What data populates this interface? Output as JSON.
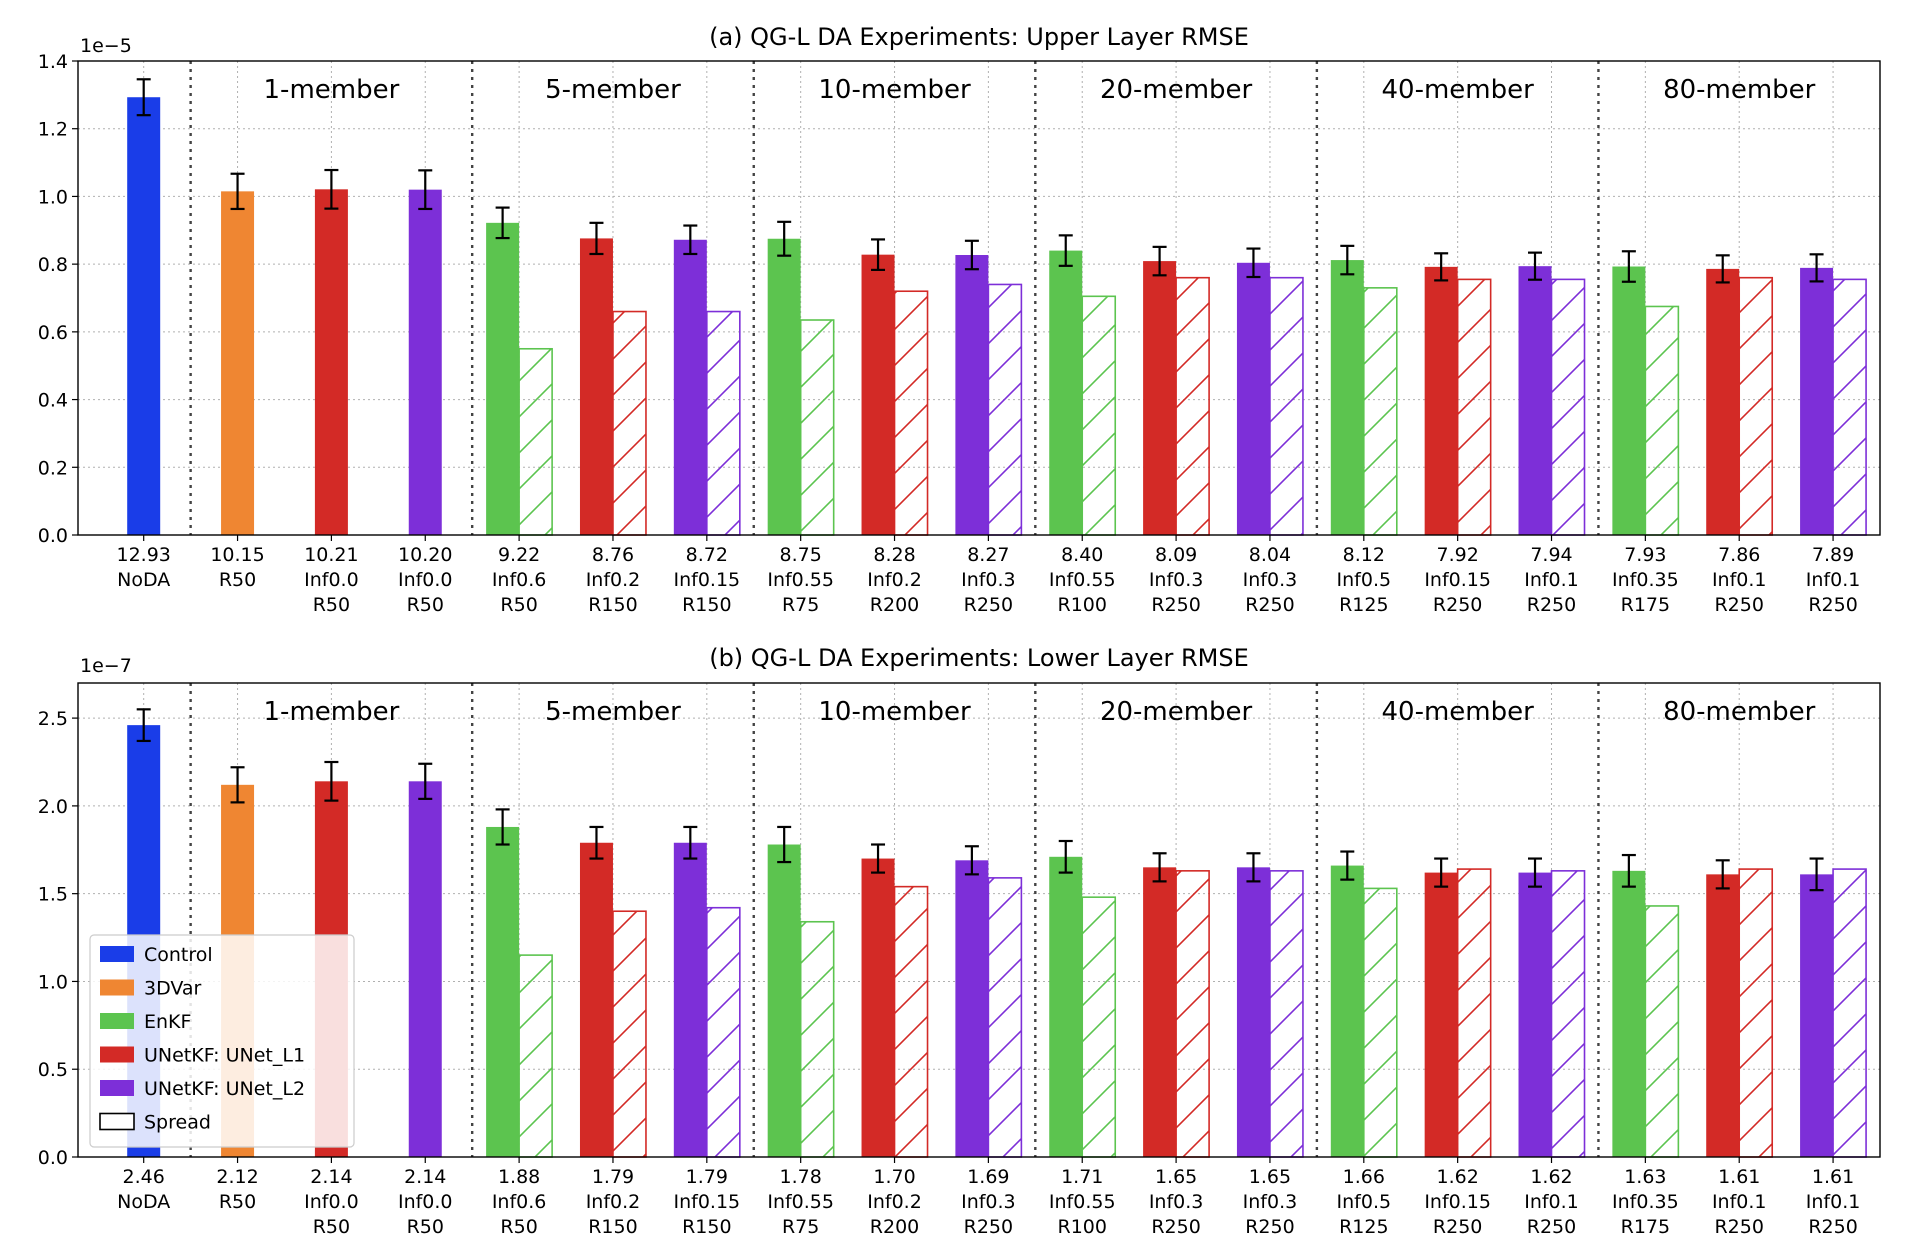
{
  "colors": {
    "Control": "#1a3de8",
    "3DVar": "#ef8632",
    "EnKF": "#5cc44f",
    "UNetKF: UNet_L1": "#d32a26",
    "UNetKF: UNet_L2": "#7d2fd8"
  },
  "legend": {
    "placement": "lower-left",
    "entries": [
      "Control",
      "3DVar",
      "EnKF",
      "UNetKF: UNet_L1",
      "UNetKF: UNet_L2",
      "Spread"
    ]
  },
  "chart_data": [
    {
      "type": "bar",
      "title": "(a) QG-L DA Experiments: Upper Layer RMSE",
      "y_exponent_label": "1e−5",
      "ylim": [
        0,
        1.4
      ],
      "yticks": [
        "0.0",
        "0.2",
        "0.4",
        "0.6",
        "0.8",
        "1.0",
        "1.2",
        "1.4"
      ],
      "grid": true,
      "group_labels": [
        "1-member",
        "5-member",
        "10-member",
        "20-member",
        "40-member",
        "80-member"
      ],
      "bars": [
        {
          "method": "Control",
          "rmse": 1.293,
          "err": 0.053,
          "label": [
            "12.93",
            "NoDA"
          ]
        },
        {
          "method": "3DVar",
          "rmse": 1.015,
          "err": 0.052,
          "label": [
            "10.15",
            "R50"
          ]
        },
        {
          "method": "UNetKF: UNet_L1",
          "rmse": 1.021,
          "err": 0.057,
          "label": [
            "10.21",
            "Inf0.0",
            "R50"
          ]
        },
        {
          "method": "UNetKF: UNet_L2",
          "rmse": 1.02,
          "err": 0.057,
          "label": [
            "10.20",
            "Inf0.0",
            "R50"
          ]
        },
        {
          "method": "EnKF",
          "rmse": 0.922,
          "err": 0.045,
          "spread": 0.55,
          "label": [
            "9.22",
            "Inf0.6",
            "R50"
          ]
        },
        {
          "method": "UNetKF: UNet_L1",
          "rmse": 0.876,
          "err": 0.046,
          "spread": 0.66,
          "label": [
            "8.76",
            "Inf0.2",
            "R150"
          ]
        },
        {
          "method": "UNetKF: UNet_L2",
          "rmse": 0.872,
          "err": 0.042,
          "spread": 0.66,
          "label": [
            "8.72",
            "Inf0.15",
            "R150"
          ]
        },
        {
          "method": "EnKF",
          "rmse": 0.875,
          "err": 0.05,
          "spread": 0.635,
          "label": [
            "8.75",
            "Inf0.55",
            "R75"
          ]
        },
        {
          "method": "UNetKF: UNet_L1",
          "rmse": 0.828,
          "err": 0.045,
          "spread": 0.72,
          "label": [
            "8.28",
            "Inf0.2",
            "R200"
          ]
        },
        {
          "method": "UNetKF: UNet_L2",
          "rmse": 0.827,
          "err": 0.042,
          "spread": 0.74,
          "label": [
            "8.27",
            "Inf0.3",
            "R250"
          ]
        },
        {
          "method": "EnKF",
          "rmse": 0.84,
          "err": 0.045,
          "spread": 0.705,
          "label": [
            "8.40",
            "Inf0.55",
            "R100"
          ]
        },
        {
          "method": "UNetKF: UNet_L1",
          "rmse": 0.809,
          "err": 0.042,
          "spread": 0.76,
          "label": [
            "8.09",
            "Inf0.3",
            "R250"
          ]
        },
        {
          "method": "UNetKF: UNet_L2",
          "rmse": 0.804,
          "err": 0.042,
          "spread": 0.76,
          "label": [
            "8.04",
            "Inf0.3",
            "R250"
          ]
        },
        {
          "method": "EnKF",
          "rmse": 0.812,
          "err": 0.042,
          "spread": 0.73,
          "label": [
            "8.12",
            "Inf0.5",
            "R125"
          ]
        },
        {
          "method": "UNetKF: UNet_L1",
          "rmse": 0.792,
          "err": 0.04,
          "spread": 0.755,
          "label": [
            "7.92",
            "Inf0.15",
            "R250"
          ]
        },
        {
          "method": "UNetKF: UNet_L2",
          "rmse": 0.794,
          "err": 0.04,
          "spread": 0.755,
          "label": [
            "7.94",
            "Inf0.1",
            "R250"
          ]
        },
        {
          "method": "EnKF",
          "rmse": 0.793,
          "err": 0.045,
          "spread": 0.675,
          "label": [
            "7.93",
            "Inf0.35",
            "R175"
          ]
        },
        {
          "method": "UNetKF: UNet_L1",
          "rmse": 0.786,
          "err": 0.04,
          "spread": 0.76,
          "label": [
            "7.86",
            "Inf0.1",
            "R250"
          ]
        },
        {
          "method": "UNetKF: UNet_L2",
          "rmse": 0.789,
          "err": 0.04,
          "spread": 0.755,
          "label": [
            "7.89",
            "Inf0.1",
            "R250"
          ]
        }
      ]
    },
    {
      "type": "bar",
      "title": "(b) QG-L DA Experiments: Lower Layer RMSE",
      "y_exponent_label": "1e−7",
      "ylim": [
        0,
        2.7
      ],
      "yticks": [
        "0.0",
        "0.5",
        "1.0",
        "1.5",
        "2.0",
        "2.5"
      ],
      "grid": true,
      "group_labels": [
        "1-member",
        "5-member",
        "10-member",
        "20-member",
        "40-member",
        "80-member"
      ],
      "bars": [
        {
          "method": "Control",
          "rmse": 2.46,
          "err": 0.09,
          "label": [
            "2.46",
            "NoDA"
          ]
        },
        {
          "method": "3DVar",
          "rmse": 2.12,
          "err": 0.1,
          "label": [
            "2.12",
            "R50"
          ]
        },
        {
          "method": "UNetKF: UNet_L1",
          "rmse": 2.14,
          "err": 0.11,
          "label": [
            "2.14",
            "Inf0.0",
            "R50"
          ]
        },
        {
          "method": "UNetKF: UNet_L2",
          "rmse": 2.14,
          "err": 0.1,
          "label": [
            "2.14",
            "Inf0.0",
            "R50"
          ]
        },
        {
          "method": "EnKF",
          "rmse": 1.88,
          "err": 0.1,
          "spread": 1.15,
          "label": [
            "1.88",
            "Inf0.6",
            "R50"
          ]
        },
        {
          "method": "UNetKF: UNet_L1",
          "rmse": 1.79,
          "err": 0.09,
          "spread": 1.4,
          "label": [
            "1.79",
            "Inf0.2",
            "R150"
          ]
        },
        {
          "method": "UNetKF: UNet_L2",
          "rmse": 1.79,
          "err": 0.09,
          "spread": 1.42,
          "label": [
            "1.79",
            "Inf0.15",
            "R150"
          ]
        },
        {
          "method": "EnKF",
          "rmse": 1.78,
          "err": 0.1,
          "spread": 1.34,
          "label": [
            "1.78",
            "Inf0.55",
            "R75"
          ]
        },
        {
          "method": "UNetKF: UNet_L1",
          "rmse": 1.7,
          "err": 0.08,
          "spread": 1.54,
          "label": [
            "1.70",
            "Inf0.2",
            "R200"
          ]
        },
        {
          "method": "UNetKF: UNet_L2",
          "rmse": 1.69,
          "err": 0.08,
          "spread": 1.59,
          "label": [
            "1.69",
            "Inf0.3",
            "R250"
          ]
        },
        {
          "method": "EnKF",
          "rmse": 1.71,
          "err": 0.09,
          "spread": 1.48,
          "label": [
            "1.71",
            "Inf0.55",
            "R100"
          ]
        },
        {
          "method": "UNetKF: UNet_L1",
          "rmse": 1.65,
          "err": 0.08,
          "spread": 1.63,
          "label": [
            "1.65",
            "Inf0.3",
            "R250"
          ]
        },
        {
          "method": "UNetKF: UNet_L2",
          "rmse": 1.65,
          "err": 0.08,
          "spread": 1.63,
          "label": [
            "1.65",
            "Inf0.3",
            "R250"
          ]
        },
        {
          "method": "EnKF",
          "rmse": 1.66,
          "err": 0.08,
          "spread": 1.53,
          "label": [
            "1.66",
            "Inf0.5",
            "R125"
          ]
        },
        {
          "method": "UNetKF: UNet_L1",
          "rmse": 1.62,
          "err": 0.08,
          "spread": 1.64,
          "label": [
            "1.62",
            "Inf0.15",
            "R250"
          ]
        },
        {
          "method": "UNetKF: UNet_L2",
          "rmse": 1.62,
          "err": 0.08,
          "spread": 1.63,
          "label": [
            "1.62",
            "Inf0.1",
            "R250"
          ]
        },
        {
          "method": "EnKF",
          "rmse": 1.63,
          "err": 0.09,
          "spread": 1.43,
          "label": [
            "1.63",
            "Inf0.35",
            "R175"
          ]
        },
        {
          "method": "UNetKF: UNet_L1",
          "rmse": 1.61,
          "err": 0.08,
          "spread": 1.64,
          "label": [
            "1.61",
            "Inf0.1",
            "R250"
          ]
        },
        {
          "method": "UNetKF: UNet_L2",
          "rmse": 1.61,
          "err": 0.09,
          "spread": 1.64,
          "label": [
            "1.61",
            "Inf0.1",
            "R250"
          ]
        }
      ]
    }
  ]
}
